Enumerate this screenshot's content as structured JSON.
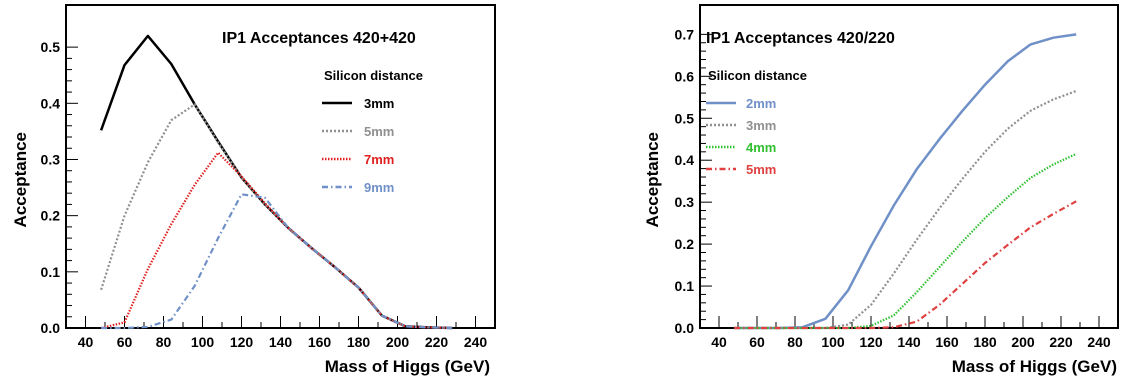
{
  "chart_data": [
    {
      "type": "line",
      "title": "IP1  Acceptances 420+420",
      "xlabel": "Mass of Higgs (GeV)",
      "ylabel": "Acceptance",
      "xlim": [
        30,
        250
      ],
      "ylim": [
        0,
        0.575
      ],
      "xticks": [
        40,
        60,
        80,
        100,
        120,
        140,
        160,
        180,
        200,
        220,
        240
      ],
      "yticks": [
        0.0,
        0.1,
        0.2,
        0.3,
        0.4,
        0.5
      ],
      "legend_title": "Silicon distance",
      "legend_position": "top-right",
      "grid": false,
      "series": [
        {
          "name": "3mm",
          "color": "#000000",
          "dash": "solid",
          "x": [
            48,
            60,
            72,
            84,
            96,
            108,
            120,
            132,
            144,
            156,
            168,
            180,
            192,
            204,
            216,
            228
          ],
          "y": [
            0.352,
            0.468,
            0.52,
            0.47,
            0.398,
            0.332,
            0.268,
            0.22,
            0.178,
            0.142,
            0.108,
            0.072,
            0.022,
            0.003,
            0.001,
            0.0
          ]
        },
        {
          "name": "5mm",
          "color": "#909090",
          "dash": "dot",
          "x": [
            48,
            60,
            72,
            84,
            96,
            108,
            120,
            132,
            144,
            156,
            168,
            180,
            192,
            204,
            216,
            228
          ],
          "y": [
            0.068,
            0.2,
            0.295,
            0.37,
            0.398,
            0.33,
            0.268,
            0.22,
            0.178,
            0.142,
            0.108,
            0.072,
            0.022,
            0.003,
            0.001,
            0.0
          ]
        },
        {
          "name": "7mm",
          "color": "#e02020",
          "dash": "densedot",
          "x": [
            48,
            60,
            72,
            84,
            96,
            108,
            120,
            132,
            144,
            156,
            168,
            180,
            192,
            204,
            216,
            228
          ],
          "y": [
            0.0,
            0.01,
            0.105,
            0.185,
            0.255,
            0.312,
            0.27,
            0.222,
            0.178,
            0.142,
            0.108,
            0.072,
            0.022,
            0.003,
            0.001,
            0.0
          ]
        },
        {
          "name": "9mm",
          "color": "#7090c8",
          "dash": "dashdot",
          "x": [
            48,
            60,
            72,
            84,
            96,
            108,
            120,
            132,
            144,
            156,
            168,
            180,
            192,
            204,
            216,
            228
          ],
          "y": [
            0.0,
            0.0,
            0.002,
            0.015,
            0.075,
            0.16,
            0.238,
            0.232,
            0.178,
            0.142,
            0.108,
            0.072,
            0.022,
            0.003,
            0.001,
            0.0
          ]
        }
      ]
    },
    {
      "type": "line",
      "title": "IP1  Acceptances 420/220",
      "xlabel": "Mass of Higgs (GeV)",
      "ylabel": "Acceptance",
      "xlim": [
        30,
        250
      ],
      "ylim": [
        0,
        0.77
      ],
      "xticks": [
        40,
        60,
        80,
        100,
        120,
        140,
        160,
        180,
        200,
        220,
        240
      ],
      "yticks": [
        0.0,
        0.1,
        0.2,
        0.3,
        0.4,
        0.5,
        0.6,
        0.7
      ],
      "legend_title": "Silicon distance",
      "legend_position": "top-left",
      "grid": false,
      "series": [
        {
          "name": "2mm",
          "color": "#7090c8",
          "dash": "solid",
          "x": [
            48,
            60,
            72,
            84,
            96,
            108,
            120,
            132,
            144,
            156,
            168,
            180,
            192,
            204,
            216,
            228
          ],
          "y": [
            0.0,
            0.0,
            0.0,
            0.002,
            0.022,
            0.09,
            0.195,
            0.292,
            0.378,
            0.45,
            0.517,
            0.58,
            0.636,
            0.676,
            0.692,
            0.7
          ]
        },
        {
          "name": "3mm",
          "color": "#909090",
          "dash": "dot",
          "x": [
            48,
            60,
            72,
            84,
            96,
            108,
            120,
            132,
            144,
            156,
            168,
            180,
            192,
            204,
            216,
            228
          ],
          "y": [
            0.0,
            0.0,
            0.0,
            0.0,
            0.0,
            0.008,
            0.055,
            0.13,
            0.21,
            0.285,
            0.355,
            0.42,
            0.475,
            0.518,
            0.545,
            0.565
          ]
        },
        {
          "name": "4mm",
          "color": "#30c030",
          "dash": "densedot",
          "x": [
            48,
            60,
            72,
            84,
            96,
            108,
            120,
            132,
            144,
            156,
            168,
            180,
            192,
            204,
            216,
            228
          ],
          "y": [
            0.0,
            0.0,
            0.0,
            0.0,
            0.0,
            0.0,
            0.005,
            0.03,
            0.085,
            0.145,
            0.205,
            0.262,
            0.312,
            0.358,
            0.39,
            0.415
          ]
        },
        {
          "name": "5mm",
          "color": "#e04040",
          "dash": "dashdot",
          "x": [
            48,
            60,
            72,
            84,
            96,
            108,
            120,
            132,
            144,
            156,
            168,
            180,
            192,
            204,
            216,
            228
          ],
          "y": [
            0.0,
            0.0,
            0.0,
            0.0,
            0.0,
            0.0,
            0.0,
            0.002,
            0.015,
            0.055,
            0.105,
            0.155,
            0.198,
            0.24,
            0.272,
            0.302
          ]
        }
      ]
    }
  ]
}
